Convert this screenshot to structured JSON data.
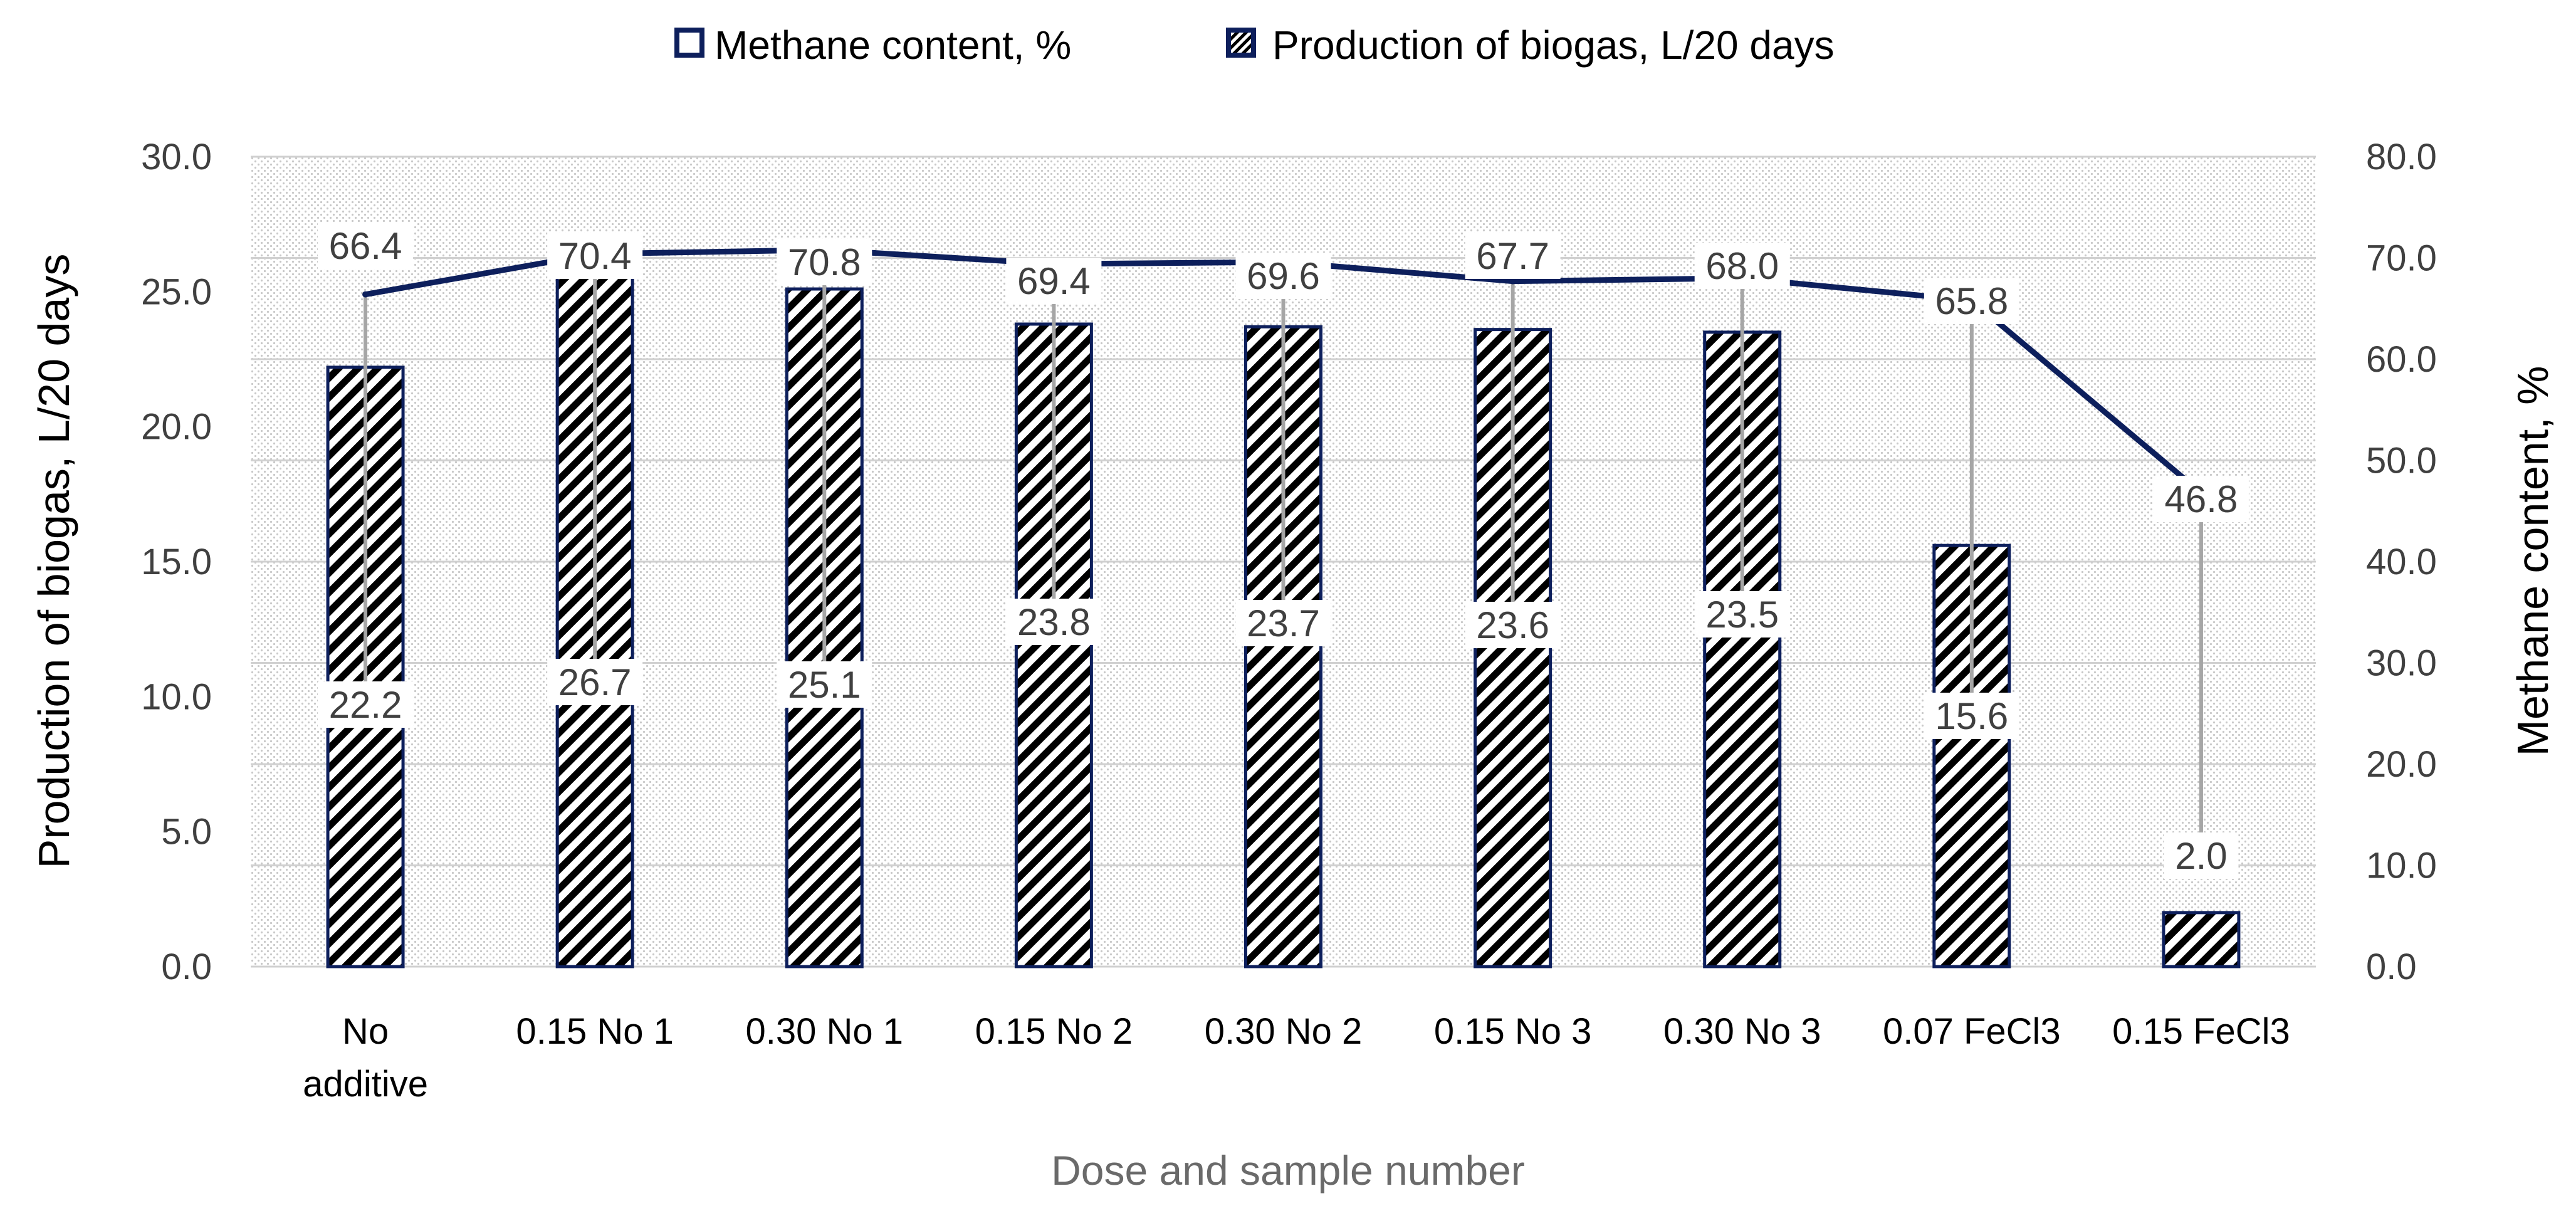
{
  "chart_data": {
    "type": "bar+line",
    "categories": [
      [
        "No",
        "additive"
      ],
      [
        "0.15 No 1"
      ],
      [
        "0.30 No 1"
      ],
      [
        "0.15 No 2"
      ],
      [
        "0.30 No 2"
      ],
      [
        "0.15 No 3"
      ],
      [
        "0.30 No 3"
      ],
      [
        "0.07 FeCl3"
      ],
      [
        "0.15 FeCl3"
      ]
    ],
    "bar_series": {
      "name": "Production of biogas, L/20 days",
      "values": [
        22.2,
        26.7,
        25.1,
        23.8,
        23.7,
        23.6,
        23.5,
        15.6,
        2.0
      ],
      "labels": [
        "22.2",
        "26.7",
        "25.1",
        "23.8",
        "23.7",
        "23.6",
        "23.5",
        "15.6",
        "2.0"
      ]
    },
    "line_series": {
      "name": "Methane content, %",
      "values": [
        66.4,
        70.4,
        70.8,
        69.4,
        69.6,
        67.7,
        68.0,
        65.8,
        46.8
      ],
      "labels": [
        "66.4",
        "70.4",
        "70.8",
        "69.4",
        "69.6",
        "67.7",
        "68.0",
        "65.8",
        "46.8"
      ]
    },
    "left_axis": {
      "title": "Production of biogas, L/20 days",
      "ylim": [
        0,
        30
      ],
      "ticks": [
        "0.0",
        "5.0",
        "10.0",
        "15.0",
        "20.0",
        "25.0",
        "30.0"
      ]
    },
    "right_axis": {
      "title": "Methane content, %",
      "ylim": [
        0,
        80
      ],
      "ticks": [
        "0.0",
        "10.0",
        "20.0",
        "30.0",
        "40.0",
        "50.0",
        "60.0",
        "70.0",
        "80.0"
      ]
    },
    "xlabel": "Dose and sample number",
    "legend": {
      "position": "top-center",
      "items": [
        "Methane content, %",
        "Production of biogas, L/20 days"
      ]
    },
    "grid": true,
    "colors": {
      "line": "#0d1f5c",
      "bar_stroke": "#000000",
      "grid": "#d0d0d0",
      "label_leader": "#a6a6a6"
    }
  }
}
